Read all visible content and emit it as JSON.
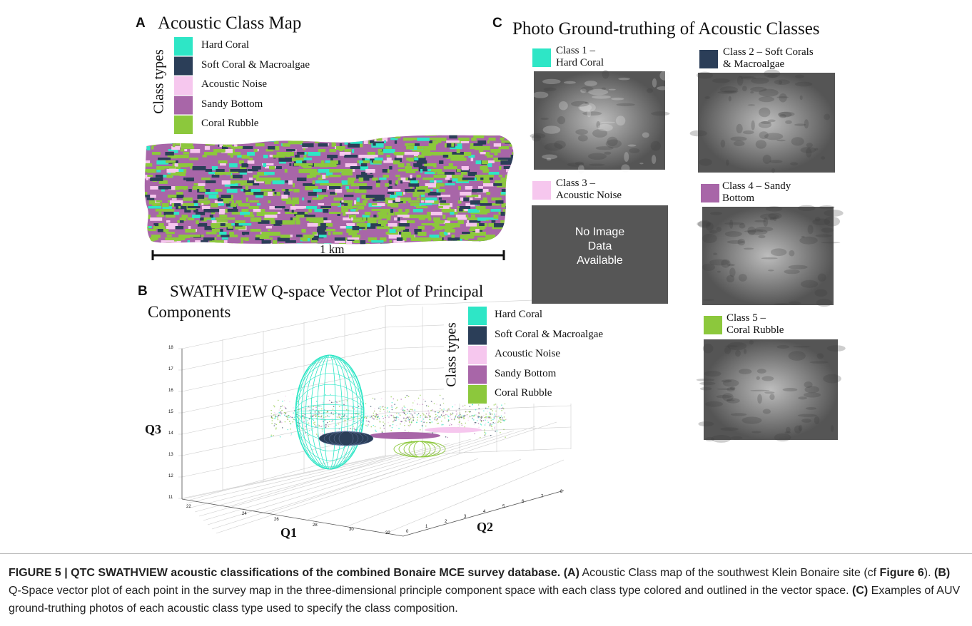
{
  "panel_a": {
    "letter": "A",
    "title": "Acoustic Class Map",
    "legend_title": "Class types",
    "legend": [
      {
        "label": "Hard Coral",
        "color": "#2ee6c6"
      },
      {
        "label": "Soft Coral & Macroalgae",
        "color": "#2b3e58"
      },
      {
        "label": "Acoustic Noise",
        "color": "#f6c7ee"
      },
      {
        "label": "Sandy Bottom",
        "color": "#a866a8"
      },
      {
        "label": "Coral Rubble",
        "color": "#8cc83c"
      }
    ],
    "scale_label": "1 km"
  },
  "panel_b": {
    "letter": "B",
    "title": "SWATHVIEW Q-space Vector Plot of Principal Components",
    "legend_title": "Class types",
    "legend": [
      {
        "label": "Hard Coral",
        "color": "#2ee6c6"
      },
      {
        "label": "Soft Coral & Macroalgae",
        "color": "#2b3e58"
      },
      {
        "label": "Acoustic Noise",
        "color": "#f6c7ee"
      },
      {
        "label": "Sandy Bottom",
        "color": "#a866a8"
      },
      {
        "label": "Coral Rubble",
        "color": "#8cc83c"
      }
    ],
    "axis_labels": {
      "x": "Q1",
      "y": "Q2",
      "z": "Q3"
    },
    "q1_ticks": [
      22,
      24,
      26,
      28,
      30,
      32
    ],
    "q2_ticks": [
      0,
      1,
      2,
      3,
      4,
      5,
      6,
      7,
      8
    ],
    "q3_ticks": [
      18,
      17,
      16,
      15,
      14,
      13,
      12,
      11
    ]
  },
  "panel_c": {
    "letter": "C",
    "title": "Photo Ground-truthing of Acoustic Classes",
    "classes": [
      {
        "lines": [
          "Class 1 –",
          "Hard Coral"
        ],
        "color": "#2ee6c6"
      },
      {
        "lines": [
          "Class 2 – Soft Corals",
          "& Macroalgae"
        ],
        "color": "#2b3e58"
      },
      {
        "lines": [
          "Class 3 –",
          "Acoustic Noise"
        ],
        "color": "#f6c7ee",
        "no_image_text": "No Image Data Available"
      },
      {
        "lines": [
          "Class 4 – Sandy",
          "Bottom"
        ],
        "color": "#a866a8"
      },
      {
        "lines": [
          "Class 5 –",
          "Coral Rubble"
        ],
        "color": "#8cc83c"
      }
    ]
  },
  "caption": [
    {
      "text": "FIGURE 5 | QTC SWATHVIEW acoustic classifications of the combined Bonaire MCE survey database.",
      "bold": true
    },
    {
      "text": " (A)",
      "bold": true
    },
    {
      "text": " Acoustic Class map of the southwest Klein Bonaire site (cf ",
      "bold": false
    },
    {
      "text": "Figure 6",
      "bold": true
    },
    {
      "text": "). ",
      "bold": false
    },
    {
      "text": "(B)",
      "bold": true
    },
    {
      "text": " Q-Space vector plot of each point in the survey map in the three-dimensional principle component space with each class type colored and outlined in the vector space. ",
      "bold": false
    },
    {
      "text": "(C)",
      "bold": true
    },
    {
      "text": " Examples of AUV ground-truthing photos of each acoustic class type used to specify the class composition.",
      "bold": false
    }
  ]
}
